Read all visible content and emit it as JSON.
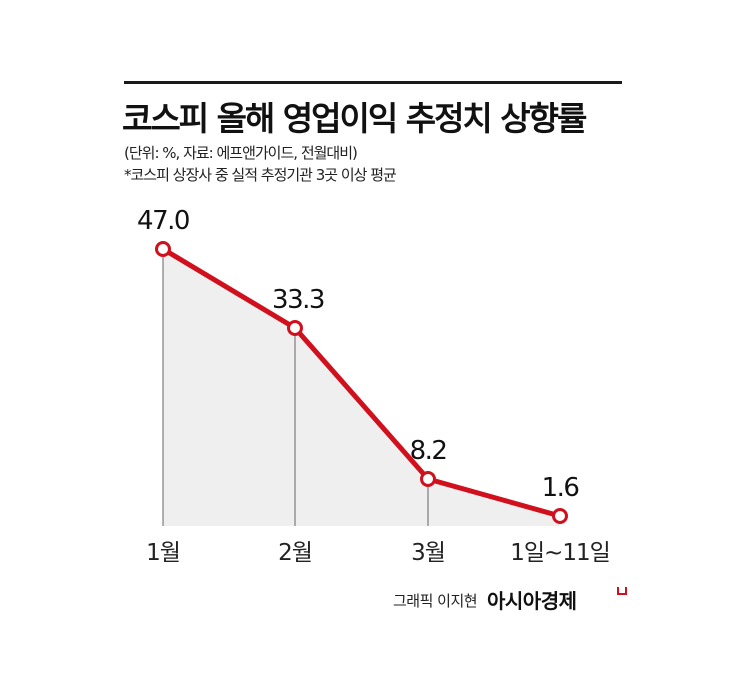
{
  "header": {
    "title": "코스피 올해 영업이익 추정치 상향률",
    "subtitle": "(단위: %, 자료: 에프앤가이드, 전월대비)",
    "note": "*코스피 상장사 중 실적 추정기관 3곳 이상 평균"
  },
  "footer": {
    "credit": "그래픽 이지현",
    "brand": "아시아경제"
  },
  "colors": {
    "line": "#d0101d",
    "fill": "#efefef",
    "marker_fill": "#ffffff",
    "drop_line": "#666666"
  },
  "chart_data": {
    "type": "line",
    "title": "코스피 올해 영업이익 추정치 상향률",
    "subtitle": "(단위: %, 자료: 에프앤가이드, 전월대비)",
    "categories": [
      "1월",
      "2월",
      "3월",
      "1일~11일"
    ],
    "values": [
      47.0,
      33.3,
      8.2,
      1.6
    ],
    "value_labels": [
      "47.0",
      "33.3",
      "8.2",
      "1.6"
    ],
    "xlabel": "",
    "ylabel": "%",
    "ylim": [
      0,
      47
    ],
    "grid": false,
    "legend": null,
    "area_fill": true,
    "annotations": [
      "*코스피 상장사 중 실적 추정기관 3곳 이상 평균"
    ]
  },
  "labels": {
    "p0": "47.0",
    "p1": "33.3",
    "p2": "8.2",
    "p3": "1.6",
    "x0": "1월",
    "x1": "2월",
    "x2": "3월",
    "x3": "1일~11일"
  }
}
